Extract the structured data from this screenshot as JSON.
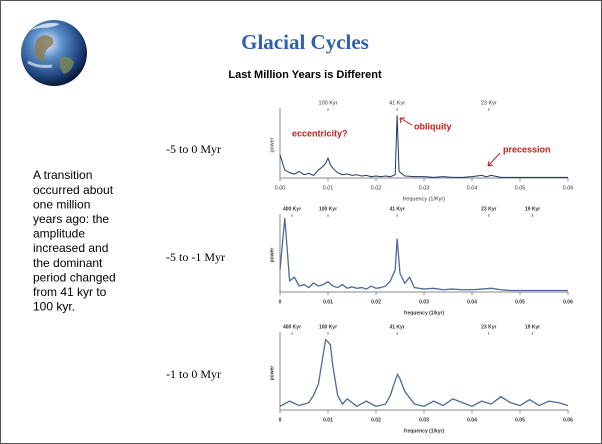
{
  "slide": {
    "title": "Glacial Cycles",
    "subtitle": "Last Million Years is Different",
    "text": [
      "A transition",
      "occurred about",
      "one million",
      "years ago:  the",
      "amplitude",
      "increased and",
      "the dominant",
      "period changed",
      "from 41 kyr to",
      "100 kyr."
    ],
    "panel_labels": [
      "-5 to 0 Myr",
      "-5 to -1 Myr",
      "-1 to 0 Myr"
    ]
  },
  "chart_data": [
    {
      "type": "line",
      "ylabel": "power",
      "xlabel": "frequency (1/Kyr)",
      "color": "#1f3864",
      "xlim": [
        0,
        0.06
      ],
      "ylim": [
        0,
        1
      ],
      "xticks": [
        {
          "value": 0,
          "label": "0.00"
        },
        0.01,
        0.02,
        0.03,
        0.04,
        0.05,
        0.06
      ],
      "top_ticks": [
        {
          "value": 0.01,
          "label": "100 Kyr"
        },
        {
          "value": 0.0244,
          "label": "41 Kyr"
        },
        {
          "value": 0.0435,
          "label": "23 Kyr"
        }
      ],
      "annotations": [
        "eccentricity?",
        "obliquity",
        "precession"
      ],
      "x": [
        0,
        0.001,
        0.002,
        0.003,
        0.004,
        0.005,
        0.006,
        0.007,
        0.008,
        0.009,
        0.0095,
        0.01,
        0.0105,
        0.011,
        0.012,
        0.013,
        0.014,
        0.015,
        0.016,
        0.017,
        0.018,
        0.019,
        0.02,
        0.021,
        0.022,
        0.023,
        0.024,
        0.0244,
        0.0248,
        0.026,
        0.028,
        0.03,
        0.032,
        0.034,
        0.036,
        0.038,
        0.04,
        0.042,
        0.043,
        0.044,
        0.046,
        0.048,
        0.05,
        0.052,
        0.054,
        0.056,
        0.058,
        0.06
      ],
      "values": [
        0.35,
        0.12,
        0.08,
        0.06,
        0.1,
        0.05,
        0.07,
        0.04,
        0.12,
        0.18,
        0.22,
        0.3,
        0.2,
        0.15,
        0.08,
        0.05,
        0.06,
        0.04,
        0.05,
        0.03,
        0.04,
        0.02,
        0.03,
        0.02,
        0.03,
        0.02,
        0.05,
        0.95,
        0.1,
        0.03,
        0.02,
        0.02,
        0.01,
        0.02,
        0.01,
        0.01,
        0.02,
        0.04,
        0.02,
        0.04,
        0.01,
        0.01,
        0.01,
        0.01,
        0.01,
        0.01,
        0.01,
        0.01
      ]
    },
    {
      "type": "line",
      "ylabel": "power",
      "xlabel": "frequency (1/kyr)",
      "color": "#4a6b9a",
      "xlim": [
        0,
        0.06
      ],
      "ylim": [
        0,
        1
      ],
      "xticks": [
        0,
        0.01,
        0.02,
        0.03,
        0.04,
        0.05,
        0.06
      ],
      "top_ticks": [
        {
          "value": 0.0025,
          "label": "400 Kyr"
        },
        {
          "value": 0.01,
          "label": "100 Kyr"
        },
        {
          "value": 0.0244,
          "label": "41 Kyr"
        },
        {
          "value": 0.0435,
          "label": "23 Kyr"
        },
        {
          "value": 0.0526,
          "label": "19 Kyr"
        }
      ],
      "x": [
        0,
        0.001,
        0.002,
        0.003,
        0.004,
        0.005,
        0.006,
        0.007,
        0.008,
        0.009,
        0.01,
        0.011,
        0.012,
        0.013,
        0.014,
        0.015,
        0.016,
        0.017,
        0.018,
        0.019,
        0.02,
        0.021,
        0.022,
        0.023,
        0.024,
        0.0244,
        0.025,
        0.026,
        0.027,
        0.028,
        0.03,
        0.032,
        0.034,
        0.036,
        0.038,
        0.04,
        0.042,
        0.044,
        0.046,
        0.048,
        0.05,
        0.052,
        0.054,
        0.056,
        0.058,
        0.06
      ],
      "values": [
        0.3,
        1.0,
        0.15,
        0.2,
        0.08,
        0.1,
        0.06,
        0.12,
        0.08,
        0.1,
        0.14,
        0.08,
        0.06,
        0.1,
        0.05,
        0.07,
        0.05,
        0.06,
        0.04,
        0.08,
        0.05,
        0.06,
        0.08,
        0.15,
        0.3,
        0.72,
        0.25,
        0.12,
        0.2,
        0.06,
        0.04,
        0.05,
        0.03,
        0.04,
        0.03,
        0.03,
        0.04,
        0.05,
        0.03,
        0.02,
        0.02,
        0.02,
        0.02,
        0.02,
        0.02,
        0.02
      ]
    },
    {
      "type": "line",
      "ylabel": "power",
      "xlabel": "frequency (1/kyr)",
      "color": "#4a6b9a",
      "xlim": [
        0,
        0.06
      ],
      "ylim": [
        0,
        1
      ],
      "xticks": [
        0,
        0.01,
        0.02,
        0.03,
        0.04,
        0.05,
        0.06
      ],
      "top_ticks": [
        {
          "value": 0.0025,
          "label": "400 Kyr"
        },
        {
          "value": 0.01,
          "label": "100 Kyr"
        },
        {
          "value": 0.0244,
          "label": "41 Kyr"
        },
        {
          "value": 0.0435,
          "label": "23 Kyr"
        },
        {
          "value": 0.0526,
          "label": "19 Kyr"
        }
      ],
      "x": [
        0,
        0.002,
        0.004,
        0.006,
        0.007,
        0.008,
        0.009,
        0.0095,
        0.01,
        0.0105,
        0.011,
        0.012,
        0.013,
        0.014,
        0.016,
        0.018,
        0.02,
        0.022,
        0.023,
        0.024,
        0.0245,
        0.025,
        0.026,
        0.028,
        0.03,
        0.032,
        0.034,
        0.036,
        0.038,
        0.04,
        0.042,
        0.044,
        0.046,
        0.048,
        0.05,
        0.052,
        0.054,
        0.056,
        0.058,
        0.06
      ],
      "values": [
        0.05,
        0.12,
        0.06,
        0.1,
        0.2,
        0.35,
        0.75,
        0.95,
        0.92,
        0.88,
        0.6,
        0.2,
        0.08,
        0.15,
        0.05,
        0.12,
        0.05,
        0.08,
        0.2,
        0.4,
        0.48,
        0.42,
        0.25,
        0.08,
        0.05,
        0.12,
        0.06,
        0.15,
        0.1,
        0.05,
        0.12,
        0.08,
        0.18,
        0.1,
        0.06,
        0.14,
        0.06,
        0.12,
        0.1,
        0.06
      ]
    }
  ]
}
